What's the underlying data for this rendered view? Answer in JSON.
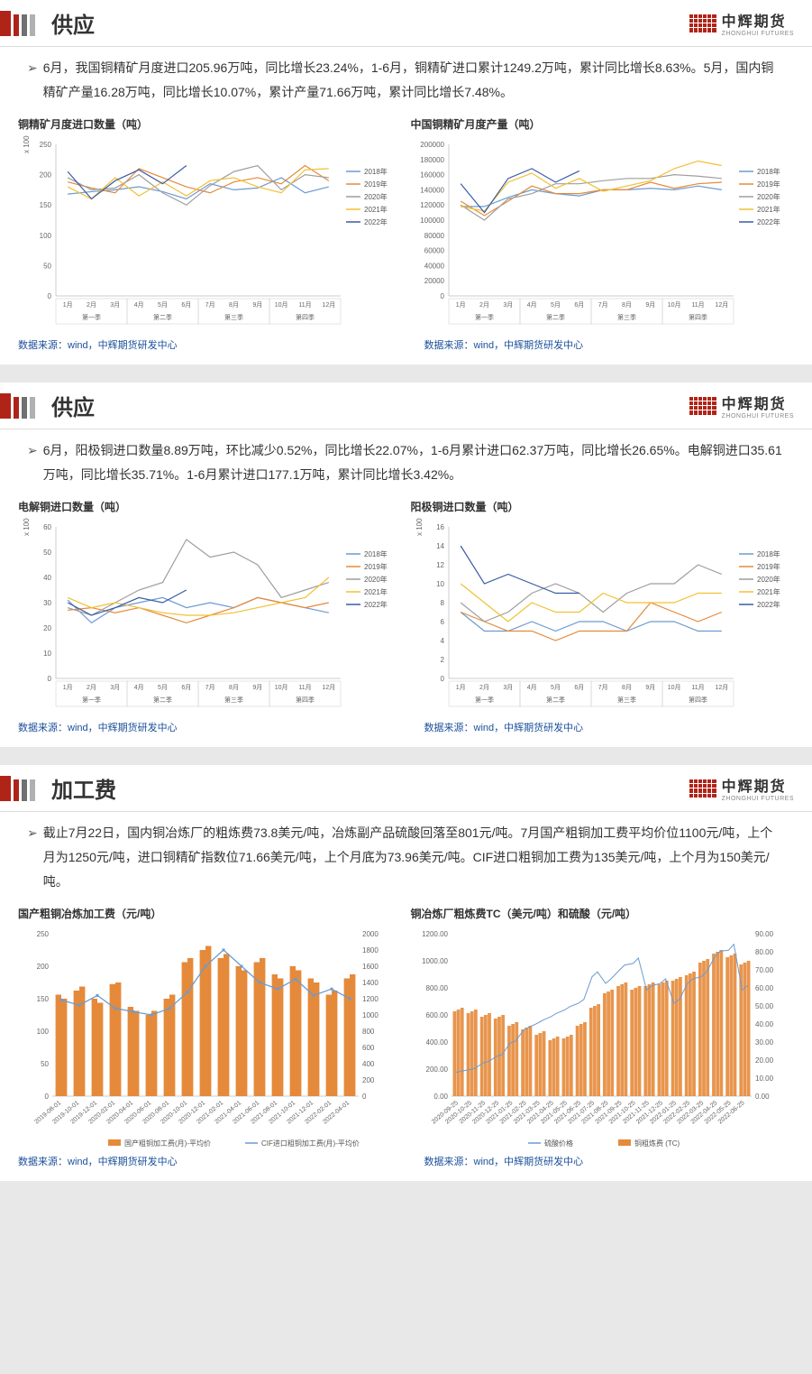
{
  "brand": {
    "cn": "中辉期货",
    "en": "ZHONGHUI FUTURES"
  },
  "title_bar_colors": [
    "#b02418",
    "#b02418",
    "#707070",
    "#b0b0b0"
  ],
  "title_bar_sizes": [
    [
      12,
      28
    ],
    [
      6,
      24
    ],
    [
      6,
      24
    ],
    [
      6,
      24
    ]
  ],
  "sections": [
    {
      "title": "供应",
      "body": "6月，我国铜精矿月度进口205.96万吨，同比增长23.24%，1-6月，铜精矿进口累计1249.2万吨，累计同比增长8.63%。5月，国内铜精矿产量16.28万吨，同比增长10.07%，累计产量71.66万吨，累计同比增长7.48%。",
      "charts": [
        {
          "title": "铜精矿月度进口数量（吨）",
          "type": "line",
          "y_label": "x 10000",
          "y_axis": {
            "min": 0,
            "max": 250,
            "ticks": [
              0,
              50,
              100,
              150,
              200,
              250
            ]
          },
          "x_labels": [
            "1月",
            "2月",
            "3月",
            "4月",
            "5月",
            "6月",
            "7月",
            "8月",
            "9月",
            "10月",
            "11月",
            "12月"
          ],
          "x_groups": [
            "第一季",
            "第二季",
            "第三季",
            "第四季"
          ],
          "legend": [
            {
              "name": "2018年",
              "color": "#6b9bd1"
            },
            {
              "name": "2019年",
              "color": "#e58a3a"
            },
            {
              "name": "2020年",
              "color": "#9e9e9e"
            },
            {
              "name": "2021年",
              "color": "#f2c033"
            },
            {
              "name": "2022年",
              "color": "#3b5ba5"
            }
          ],
          "series": {
            "2018": [
              168,
              172,
              175,
              180,
              172,
              160,
              185,
              175,
              178,
              195,
              170,
              180
            ],
            "2019": [
              188,
              178,
              170,
              210,
              195,
              180,
              170,
              188,
              195,
              185,
              215,
              190
            ],
            "2020": [
              195,
              175,
              178,
              200,
              170,
              150,
              182,
              205,
              215,
              175,
              200,
              195
            ],
            "2021": [
              180,
              160,
              195,
              165,
              188,
              165,
              190,
              195,
              180,
              170,
              208,
              210
            ],
            "2022": [
              205,
              160,
              190,
              208,
              185,
              215,
              null,
              null,
              null,
              null,
              null,
              null
            ]
          },
          "source": "数据来源：wind，中辉期货研发中心"
        },
        {
          "title": "中国铜精矿月度产量（吨）",
          "type": "line",
          "y_axis": {
            "min": 0,
            "max": 200000,
            "ticks": [
              0,
              20000,
              40000,
              60000,
              80000,
              100000,
              120000,
              140000,
              160000,
              180000,
              200000
            ]
          },
          "x_labels": [
            "1月",
            "2月",
            "3月",
            "4月",
            "5月",
            "6月",
            "7月",
            "8月",
            "9月",
            "10月",
            "11月",
            "12月"
          ],
          "x_groups": [
            "第一季",
            "第二季",
            "第三季",
            "第四季"
          ],
          "legend": [
            {
              "name": "2018年",
              "color": "#6b9bd1"
            },
            {
              "name": "2019年",
              "color": "#e58a3a"
            },
            {
              "name": "2020年",
              "color": "#9e9e9e"
            },
            {
              "name": "2021年",
              "color": "#f2c033"
            },
            {
              "name": "2022年",
              "color": "#3b5ba5"
            }
          ],
          "series": {
            "2018": [
              118000,
              118000,
              130000,
              140000,
              135000,
              132000,
              140000,
              140000,
              142000,
              140000,
              145000,
              140000
            ],
            "2019": [
              125000,
              106000,
              125000,
              145000,
              135000,
              135000,
              140000,
              140000,
              150000,
              142000,
              148000,
              150000
            ],
            "2020": [
              120000,
              100000,
              128000,
              135000,
              148000,
              148000,
              152000,
              155000,
              155000,
              160000,
              158000,
              155000
            ],
            "2021": [
              118000,
              112000,
              150000,
              162000,
              142000,
              155000,
              138000,
              145000,
              152000,
              168000,
              178000,
              172000
            ],
            "2022": [
              148000,
              110000,
              155000,
              168000,
              150000,
              165000,
              null,
              null,
              null,
              null,
              null,
              null
            ]
          },
          "source": "数据来源：wind，中辉期货研发中心"
        }
      ]
    },
    {
      "title": "供应",
      "body": "6月，阳极铜进口数量8.89万吨，环比减少0.52%，同比增长22.07%，1-6月累计进口62.37万吨，同比增长26.65%。电解铜进口35.61万吨，同比增长35.71%。1-6月累计进口177.1万吨，累计同比增长3.42%。",
      "charts": [
        {
          "title": "电解铜进口数量（吨）",
          "type": "line",
          "y_label": "x 10000",
          "y_axis": {
            "min": 0,
            "max": 60,
            "ticks": [
              0,
              10,
              20,
              30,
              40,
              50,
              60
            ]
          },
          "x_labels": [
            "1月",
            "2月",
            "3月",
            "4月",
            "5月",
            "6月",
            "7月",
            "8月",
            "9月",
            "10月",
            "11月",
            "12月"
          ],
          "x_groups": [
            "第一季",
            "第二季",
            "第三季",
            "第四季"
          ],
          "legend": [
            {
              "name": "2018年",
              "color": "#6b9bd1"
            },
            {
              "name": "2019年",
              "color": "#e58a3a"
            },
            {
              "name": "2020年",
              "color": "#9e9e9e"
            },
            {
              "name": "2021年",
              "color": "#f2c033"
            },
            {
              "name": "2022年",
              "color": "#3b5ba5"
            }
          ],
          "series": {
            "2018": [
              31,
              22,
              28,
              30,
              32,
              28,
              30,
              28,
              32,
              30,
              28,
              26
            ],
            "2019": [
              27,
              28,
              26,
              28,
              25,
              22,
              25,
              28,
              32,
              30,
              28,
              30
            ],
            "2020": [
              28,
              25,
              30,
              35,
              38,
              55,
              48,
              50,
              45,
              32,
              35,
              38
            ],
            "2021": [
              32,
              28,
              30,
              28,
              26,
              25,
              25,
              26,
              28,
              30,
              32,
              40
            ],
            "2022": [
              30,
              25,
              28,
              32,
              30,
              35,
              null,
              null,
              null,
              null,
              null,
              null
            ]
          },
          "source": "数据来源：wind，中辉期货研发中心"
        },
        {
          "title": "阳极铜进口数量（吨）",
          "type": "line",
          "y_label": "x 10000",
          "y_axis": {
            "min": 0,
            "max": 16,
            "ticks": [
              0,
              2,
              4,
              6,
              8,
              10,
              12,
              14,
              16
            ]
          },
          "x_labels": [
            "1月",
            "2月",
            "3月",
            "4月",
            "5月",
            "6月",
            "7月",
            "8月",
            "9月",
            "10月",
            "11月",
            "12月"
          ],
          "x_groups": [
            "第一季",
            "第二季",
            "第三季",
            "第四季"
          ],
          "legend": [
            {
              "name": "2018年",
              "color": "#6b9bd1"
            },
            {
              "name": "2019年",
              "color": "#e58a3a"
            },
            {
              "name": "2020年",
              "color": "#9e9e9e"
            },
            {
              "name": "2021年",
              "color": "#f2c033"
            },
            {
              "name": "2022年",
              "color": "#3b5ba5"
            }
          ],
          "series": {
            "2018": [
              7,
              5,
              5,
              6,
              5,
              6,
              6,
              5,
              6,
              6,
              5,
              5
            ],
            "2019": [
              7,
              6,
              5,
              5,
              4,
              5,
              5,
              5,
              8,
              7,
              6,
              7
            ],
            "2020": [
              8,
              6,
              7,
              9,
              10,
              9,
              7,
              9,
              10,
              10,
              12,
              11
            ],
            "2021": [
              10,
              8,
              6,
              8,
              7,
              7,
              9,
              8,
              8,
              8,
              9,
              9
            ],
            "2022": [
              14,
              10,
              11,
              10,
              9,
              9,
              null,
              null,
              null,
              null,
              null,
              null
            ]
          },
          "source": "数据来源：wind，中辉期货研发中心"
        }
      ]
    },
    {
      "title": "加工费",
      "body": "截止7月22日，国内铜冶炼厂的粗炼费73.8美元/吨，冶炼副产品硫酸回落至801元/吨。7月国产粗铜加工费平均价位1100元/吨，上个月为1250元/吨，进口铜精矿指数位71.66美元/吨，上个月底为73.96美元/吨。CIF进口粗铜加工费为135美元/吨，上个月为150美元/吨。",
      "charts": [
        {
          "title": "国产粗铜冶炼加工费（元/吨）",
          "type": "combo",
          "y_axis": {
            "min": 0,
            "max": 250,
            "ticks": [
              0,
              50,
              100,
              150,
              200,
              250
            ]
          },
          "y2_axis": {
            "min": 0,
            "max": 2000,
            "ticks": [
              0,
              200,
              400,
              600,
              800,
              1000,
              1200,
              1400,
              1600,
              1800,
              2000
            ]
          },
          "x_labels": [
            "2019-08-01",
            "2019-10-01",
            "2019-12-01",
            "2020-02-01",
            "2020-04-01",
            "2020-06-01",
            "2020-08-01",
            "2020-10-01",
            "2020-12-01",
            "2021-02-01",
            "2021-04-01",
            "2021-06-01",
            "2021-08-01",
            "2021-10-01",
            "2021-12-01",
            "2022-02-01",
            "2022-04-01"
          ],
          "legend": [
            {
              "name": "国产粗铜加工费(月)-平均价",
              "color": "#e58a3a",
              "type": "bar"
            },
            {
              "name": "CIF进口粗铜加工费(月)-平均价",
              "color": "#6b9bd1",
              "type": "line"
            }
          ],
          "bars": [
            1250,
            1300,
            1200,
            1380,
            1100,
            1000,
            1200,
            1650,
            1800,
            1700,
            1600,
            1650,
            1500,
            1600,
            1450,
            1250,
            1450
          ],
          "bars_gap": [
            1200,
            1350,
            1150,
            1400,
            1050,
            1050,
            1250,
            1700,
            1850,
            1750,
            1550,
            1700,
            1450,
            1550,
            1400,
            1300,
            1500
          ],
          "line": [
            148,
            140,
            155,
            135,
            130,
            125,
            135,
            160,
            200,
            225,
            200,
            175,
            165,
            180,
            155,
            165,
            150
          ],
          "source": "数据来源：wind，中辉期货研发中心"
        },
        {
          "title": "铜冶炼厂粗炼费TC（美元/吨）和硫酸（元/吨）",
          "type": "dual",
          "y_axis": {
            "min": 0,
            "max": 1200,
            "ticks": [
              0,
              200,
              400,
              600,
              800,
              1000,
              1200
            ]
          },
          "y2_axis": {
            "min": 0,
            "max": 90,
            "ticks": [
              0,
              10,
              20,
              30,
              40,
              50,
              60,
              70,
              80,
              90
            ]
          },
          "x_labels": [
            "2020-09-25",
            "2020-10-25",
            "2020-11-25",
            "2020-12-25",
            "2021-01-25",
            "2021-02-25",
            "2021-03-25",
            "2021-04-25",
            "2021-05-25",
            "2021-06-25",
            "2021-07-25",
            "2021-08-25",
            "2021-09-25",
            "2021-10-25",
            "2021-11-25",
            "2021-12-25",
            "2022-01-25",
            "2022-02-25",
            "2022-03-25",
            "2022-04-25",
            "2022-05-25",
            "2022-06-25"
          ],
          "legend": [
            {
              "name": "硫酸价格",
              "color": "#6b9bd1",
              "type": "line"
            },
            {
              "name": "铜粗炼费 (TC)",
              "color": "#e58a3a",
              "type": "bar"
            }
          ],
          "sulfuric": [
            180,
            200,
            250,
            300,
            400,
            500,
            550,
            600,
            650,
            700,
            900,
            850,
            950,
            1000,
            800,
            850,
            700,
            850,
            900,
            1050,
            1100,
            801
          ],
          "tc": [
            48,
            47,
            45,
            44,
            40,
            38,
            35,
            32,
            33,
            40,
            50,
            58,
            62,
            60,
            62,
            63,
            65,
            68,
            75,
            80,
            78,
            74
          ],
          "source": "数据来源：wind，中辉期货研发中心"
        }
      ]
    }
  ]
}
